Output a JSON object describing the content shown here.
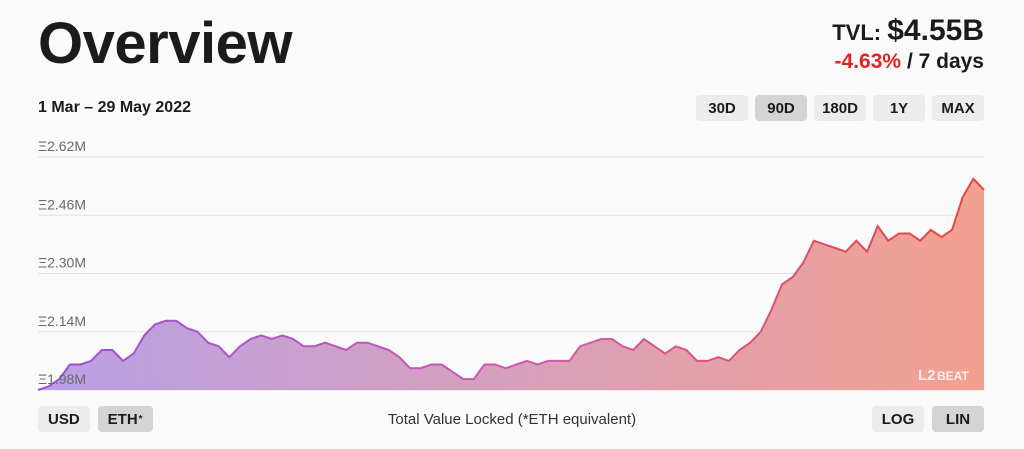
{
  "header": {
    "title": "Overview",
    "tvl_label": "TVL:",
    "tvl_value": "$4.55B",
    "change": "-4.63%",
    "change_period": "/ 7 days",
    "date_range": "1 Mar – 29 May 2022"
  },
  "periods": [
    {
      "label": "30D",
      "active": false
    },
    {
      "label": "90D",
      "active": true
    },
    {
      "label": "180D",
      "active": false
    },
    {
      "label": "1Y",
      "active": false
    },
    {
      "label": "MAX",
      "active": false
    }
  ],
  "units": {
    "usd": "USD",
    "eth": "ETH",
    "eth_mark": "*",
    "active": "eth"
  },
  "scales": {
    "log": "LOG",
    "lin": "LIN",
    "active": "lin"
  },
  "footer": {
    "label": "Total Value Locked (*ETH equivalent)"
  },
  "watermark": {
    "text_left": "L2",
    "text_right": "BEAT"
  },
  "colors": {
    "change_negative": "#e02424",
    "area_start": "#b9a0e6",
    "area_end": "#f4a090",
    "line_start": "#9b4fd6",
    "line_end": "#e5463a"
  },
  "chart_data": {
    "type": "area",
    "x_range": [
      "2022-03-01",
      "2022-05-29"
    ],
    "ylim": [
      1.98,
      2.62
    ],
    "y_ticks": [
      {
        "value": 1.98,
        "label": "Ξ1.98M"
      },
      {
        "value": 2.14,
        "label": "Ξ2.14M"
      },
      {
        "value": 2.3,
        "label": "Ξ2.30M"
      },
      {
        "value": 2.46,
        "label": "Ξ2.46M"
      },
      {
        "value": 2.62,
        "label": "Ξ2.62M"
      }
    ],
    "grid": true,
    "series": [
      {
        "values": [
          1.98,
          1.99,
          2.01,
          2.05,
          2.05,
          2.06,
          2.09,
          2.09,
          2.06,
          2.08,
          2.13,
          2.16,
          2.17,
          2.17,
          2.15,
          2.14,
          2.11,
          2.1,
          2.07,
          2.1,
          2.12,
          2.13,
          2.12,
          2.13,
          2.12,
          2.1,
          2.1,
          2.11,
          2.1,
          2.09,
          2.11,
          2.11,
          2.1,
          2.09,
          2.07,
          2.04,
          2.04,
          2.05,
          2.05,
          2.03,
          2.01,
          2.01,
          2.05,
          2.05,
          2.04,
          2.05,
          2.06,
          2.05,
          2.06,
          2.06,
          2.06,
          2.1,
          2.11,
          2.12,
          2.12,
          2.1,
          2.09,
          2.12,
          2.1,
          2.08,
          2.1,
          2.09,
          2.06,
          2.06,
          2.07,
          2.06,
          2.09,
          2.11,
          2.14,
          2.2,
          2.27,
          2.29,
          2.33,
          2.39,
          2.38,
          2.37,
          2.36,
          2.39,
          2.36,
          2.43,
          2.39,
          2.41,
          2.41,
          2.39,
          2.42,
          2.4,
          2.42,
          2.51,
          2.56,
          2.53
        ]
      }
    ]
  }
}
